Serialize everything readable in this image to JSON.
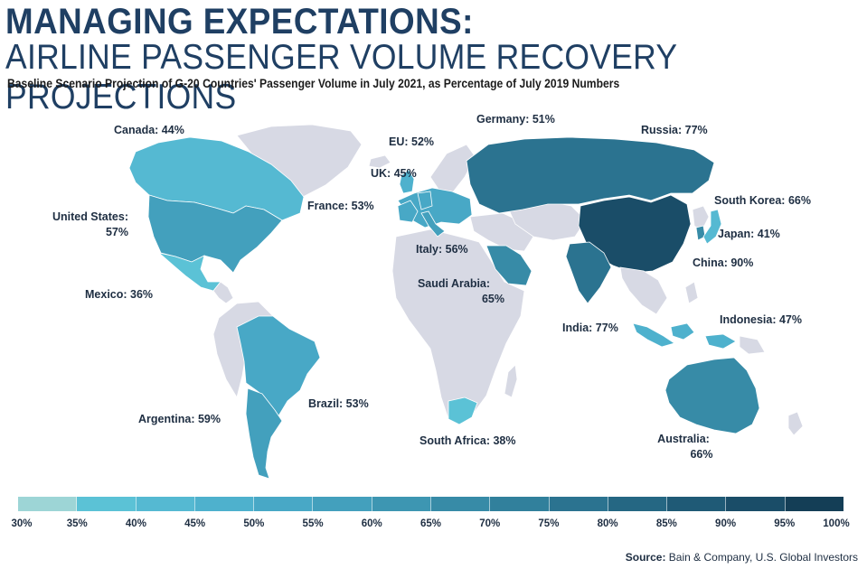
{
  "header": {
    "title_line1": "MANAGING EXPECTATIONS:",
    "title_line2": "AIRLINE PASSENGER VOLUME RECOVERY PROJECTIONS",
    "subtitle": "Baseline Scenario Projection of G-20 Countries' Passenger Volume in July 2021, as Percentage of July 2019 Numbers"
  },
  "chart_data": {
    "type": "choropleth",
    "title": "Airline Passenger Volume Recovery Projections",
    "value_unit": "% of July 2019 passenger volume",
    "scale_range": [
      30,
      100
    ],
    "countries": [
      {
        "id": "canada",
        "name": "Canada",
        "value": 44,
        "label": "Canada: 44%"
      },
      {
        "id": "united-states",
        "name": "United States",
        "value": 57,
        "label_line1": "United States:",
        "label_line2": "57%"
      },
      {
        "id": "mexico",
        "name": "Mexico",
        "value": 36,
        "label": "Mexico: 36%"
      },
      {
        "id": "brazil",
        "name": "Brazil",
        "value": 53,
        "label": "Brazil: 53%"
      },
      {
        "id": "argentina",
        "name": "Argentina",
        "value": 59,
        "label": "Argentina: 59%"
      },
      {
        "id": "eu",
        "name": "EU",
        "value": 52,
        "label": "EU: 52%"
      },
      {
        "id": "uk",
        "name": "UK",
        "value": 45,
        "label": "UK: 45%"
      },
      {
        "id": "france",
        "name": "France",
        "value": 53,
        "label": "France: 53%"
      },
      {
        "id": "germany",
        "name": "Germany",
        "value": 51,
        "label": "Germany: 51%"
      },
      {
        "id": "italy",
        "name": "Italy",
        "value": 56,
        "label": "Italy: 56%"
      },
      {
        "id": "russia",
        "name": "Russia",
        "value": 77,
        "label": "Russia: 77%"
      },
      {
        "id": "saudi-arabia",
        "name": "Saudi Arabia",
        "value": 65,
        "label_line1": "Saudi Arabia:",
        "label_line2": "65%"
      },
      {
        "id": "south-africa",
        "name": "South Africa",
        "value": 38,
        "label": "South Africa: 38%"
      },
      {
        "id": "india",
        "name": "India",
        "value": 77,
        "label": "India: 77%"
      },
      {
        "id": "china",
        "name": "China",
        "value": 90,
        "label": "China: 90%"
      },
      {
        "id": "south-korea",
        "name": "South Korea",
        "value": 66,
        "label": "South Korea: 66%"
      },
      {
        "id": "japan",
        "name": "Japan",
        "value": 41,
        "label": "Japan: 41%"
      },
      {
        "id": "indonesia",
        "name": "Indonesia",
        "value": 47,
        "label": "Indonesia: 47%"
      },
      {
        "id": "australia",
        "name": "Australia",
        "value": 66,
        "label_line1": "Australia:",
        "label_line2": "66%"
      }
    ],
    "legend": {
      "ticks": [
        "30%",
        "35%",
        "40%",
        "45%",
        "50%",
        "55%",
        "60%",
        "65%",
        "70%",
        "75%",
        "80%",
        "85%",
        "90%",
        "95%",
        "100%"
      ],
      "colors": [
        "#9dd5d6",
        "#5bc2d6",
        "#55b9d2",
        "#4eb1cd",
        "#48a8c6",
        "#43a0bd",
        "#3d96b2",
        "#378ba7",
        "#31809c",
        "#2b7390",
        "#256783",
        "#1f5a76",
        "#1a4d68",
        "#143e56"
      ]
    },
    "colors": {
      "no_data": "#d7d9e4",
      "water": "#ffffff"
    }
  },
  "footer": {
    "source_label": "Source:",
    "source_text": "Bain & Company, U.S. Global Investors"
  }
}
